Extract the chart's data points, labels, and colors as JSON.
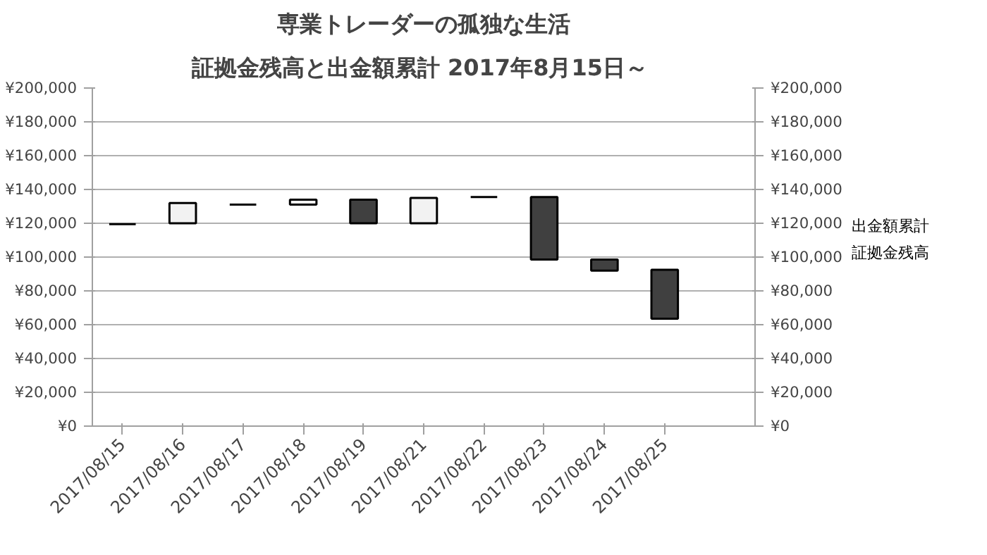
{
  "chart_data": {
    "type": "candlestick",
    "title": "専業トレーダーの孤独な生活",
    "subtitle": "証拠金残高と出金額累計  2017年8月15日～",
    "categories": [
      "2017/08/15",
      "2017/08/16",
      "2017/08/17",
      "2017/08/18",
      "2017/08/19",
      "2017/08/21",
      "2017/08/22",
      "2017/08/23",
      "2017/08/24",
      "2017/08/25"
    ],
    "ohlc": [
      [
        119500,
        119500,
        119500,
        119500
      ],
      [
        120000,
        132000,
        120000,
        132000
      ],
      [
        131000,
        131000,
        131000,
        131000
      ],
      [
        131000,
        134000,
        131000,
        134000
      ],
      [
        134000,
        134000,
        120000,
        120000
      ],
      [
        120000,
        135000,
        120000,
        135000
      ],
      [
        135500,
        135500,
        135500,
        135500
      ],
      [
        135500,
        135500,
        98500,
        98500
      ],
      [
        98500,
        98500,
        92000,
        92000
      ],
      [
        92500,
        92500,
        63500,
        63500
      ]
    ],
    "colors": [
      "#000000",
      "#f2f2f2",
      "#000000",
      "#f2f2f2",
      "#404040",
      "#f2f2f2",
      "#000000",
      "#404040",
      "#404040",
      "#404040"
    ],
    "annotations": [
      "出金額累計",
      "証拠金残高"
    ],
    "ylim": [
      0,
      200000
    ],
    "yticks": [
      {
        "value": 0,
        "label": "¥0"
      },
      {
        "value": 20000,
        "label": "¥20,000"
      },
      {
        "value": 40000,
        "label": "¥40,000"
      },
      {
        "value": 60000,
        "label": "¥60,000"
      },
      {
        "value": 80000,
        "label": "¥80,000"
      },
      {
        "value": 100000,
        "label": "¥100,000"
      },
      {
        "value": 120000,
        "label": "¥120,000"
      },
      {
        "value": 140000,
        "label": "¥140,000"
      },
      {
        "value": 160000,
        "label": "¥160,000"
      },
      {
        "value": 180000,
        "label": "¥180,000"
      },
      {
        "value": 200000,
        "label": "¥200,000"
      }
    ],
    "y2lim": [
      0,
      200000
    ],
    "y2ticks": [
      {
        "value": 0,
        "label": "¥0"
      },
      {
        "value": 20000,
        "label": "¥20,000"
      },
      {
        "value": 40000,
        "label": "¥40,000"
      },
      {
        "value": 60000,
        "label": "¥60,000"
      },
      {
        "value": 80000,
        "label": "¥80,000"
      },
      {
        "value": 100000,
        "label": "¥100,000"
      },
      {
        "value": 120000,
        "label": "¥120,000"
      },
      {
        "value": 140000,
        "label": "¥140,000"
      },
      {
        "value": 160000,
        "label": "¥160,000"
      },
      {
        "value": 180000,
        "label": "¥180,000"
      },
      {
        "value": 200000,
        "label": "¥200,000"
      }
    ],
    "grid": "y"
  }
}
